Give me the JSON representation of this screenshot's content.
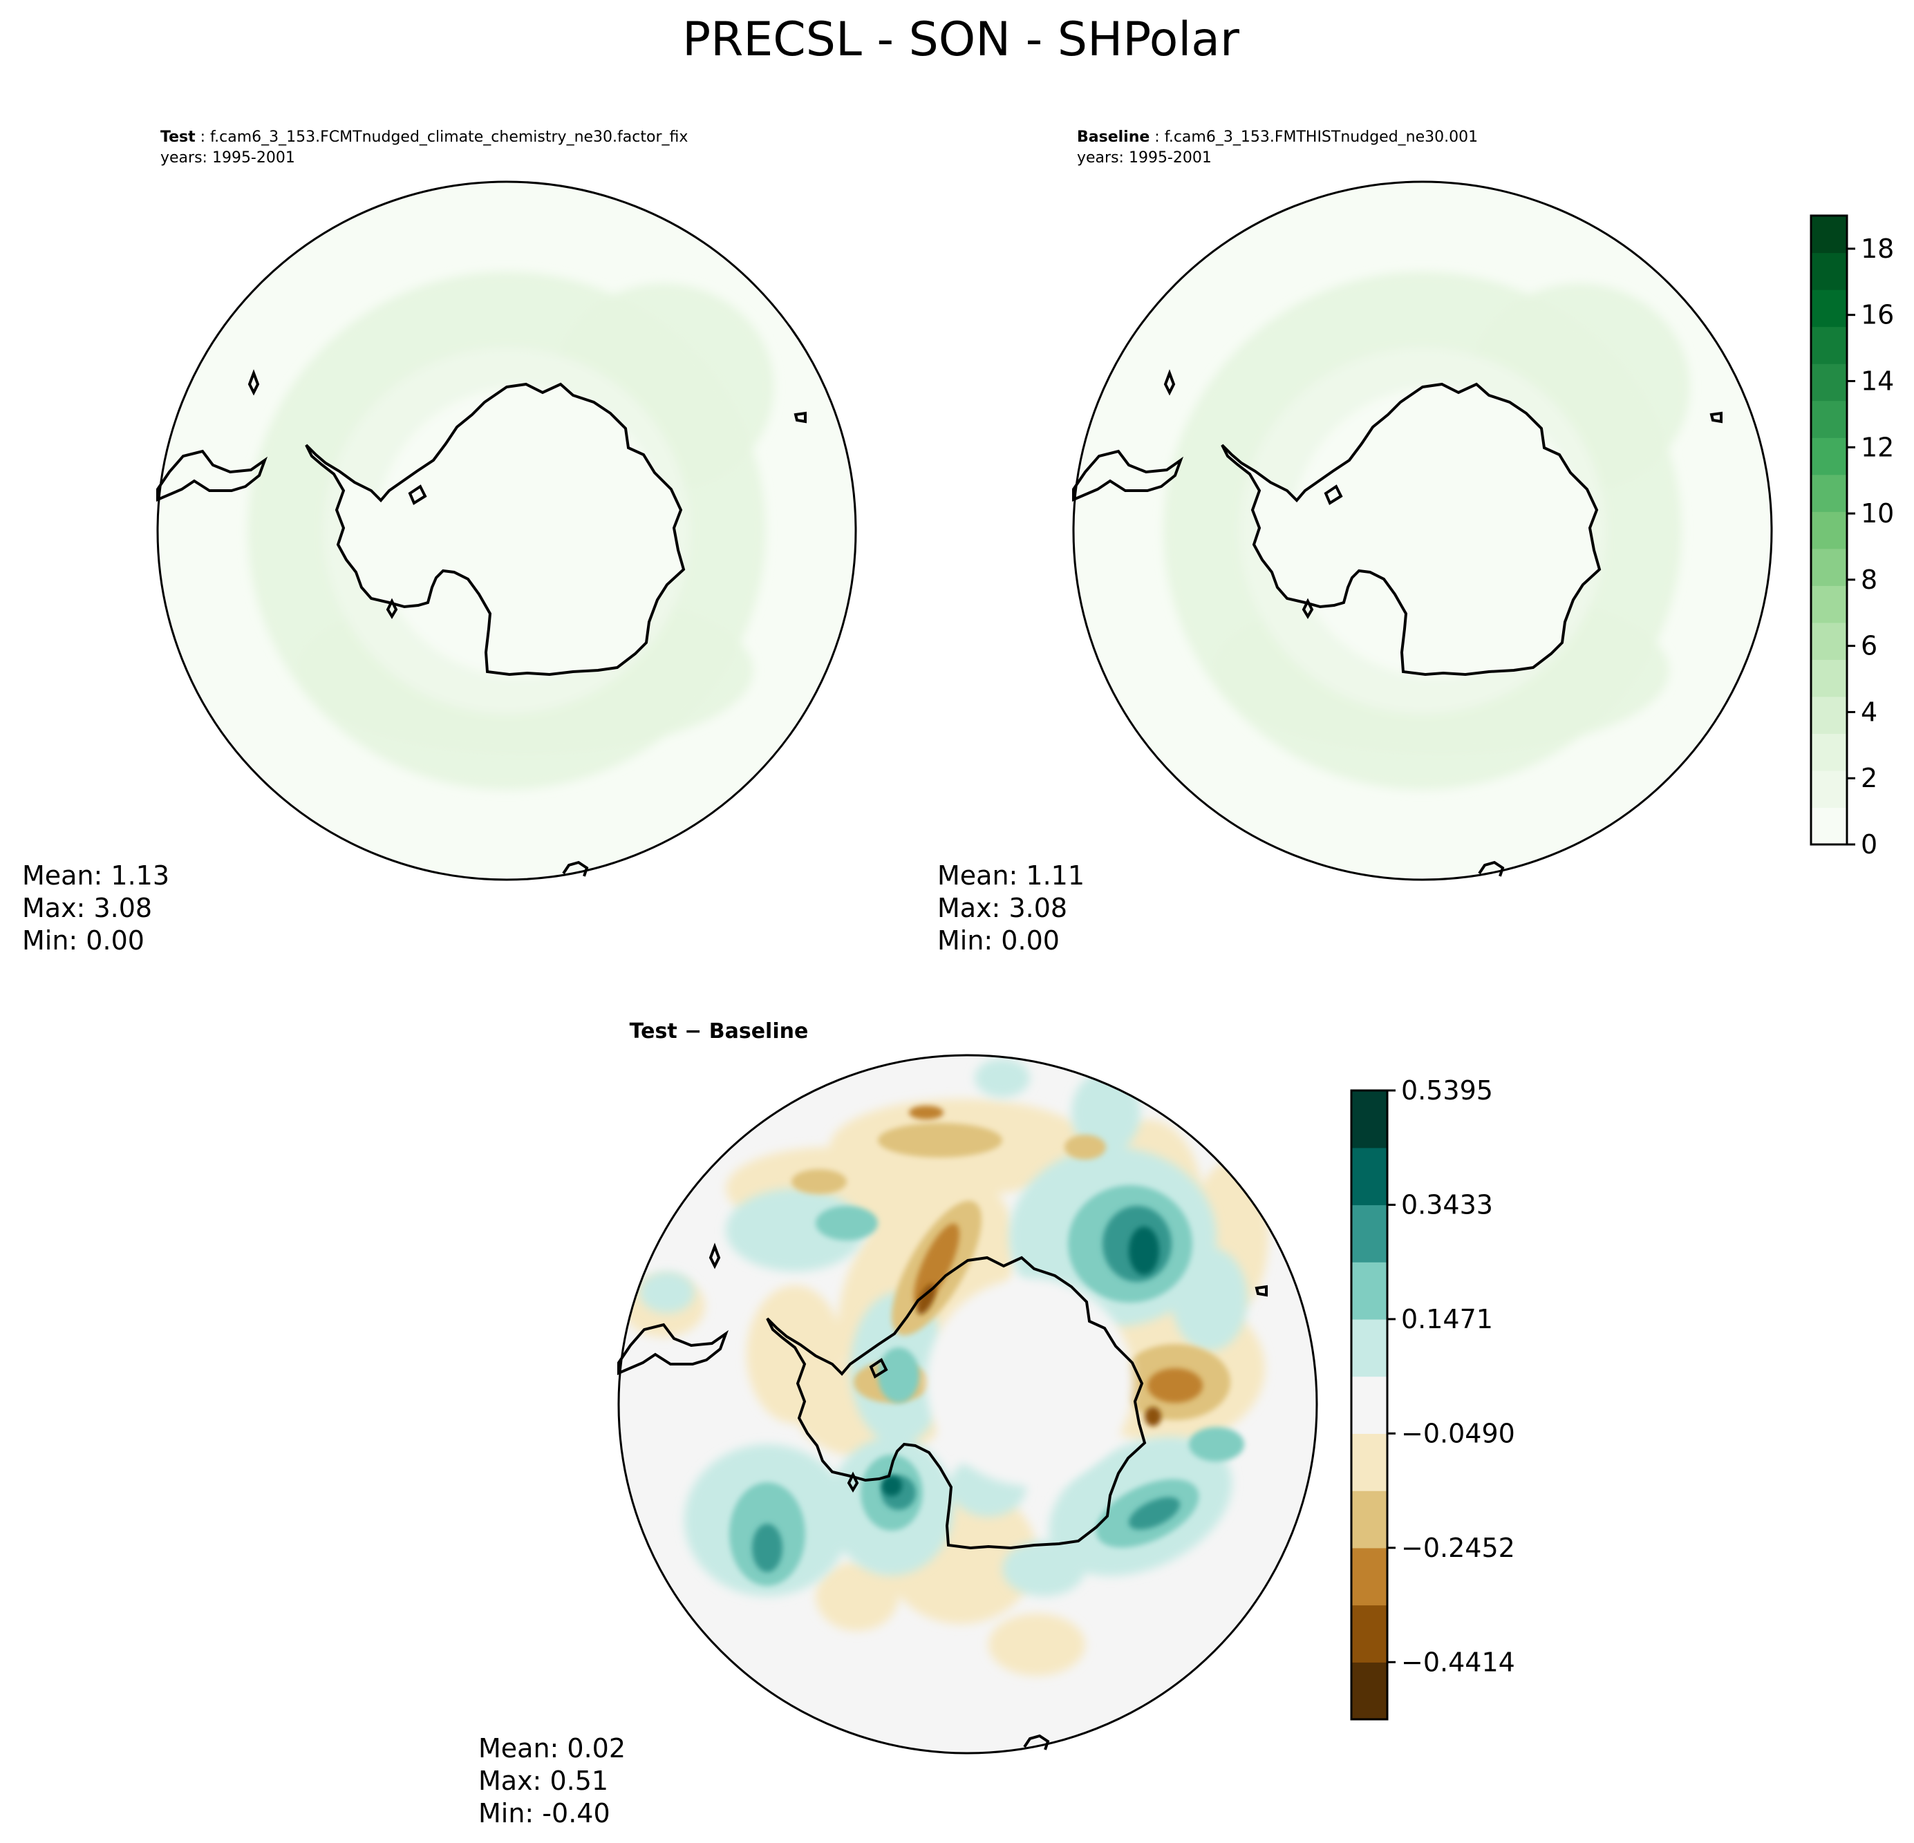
{
  "figure": {
    "title": "PRECSL - SON - SHPolar"
  },
  "panels": [
    {
      "id": "test",
      "label_bold": "Test",
      "case_name": "f.cam6_3_153.FCMTnudged_climate_chemistry_ne30.factor_fix",
      "years": "years: 1995-2001",
      "stats": {
        "mean": "Mean:  1.13",
        "max": "Max:  3.08",
        "min": "Min:  0.00"
      }
    },
    {
      "id": "baseline",
      "label_bold": "Baseline",
      "case_name": "f.cam6_3_153.FMTHISTnudged_ne30.001",
      "years": "years: 1995-2001",
      "stats": {
        "mean": "Mean:  1.11",
        "max": "Max:  3.08",
        "min": "Min:  0.00"
      }
    },
    {
      "id": "diff",
      "label_bold": "Test − Baseline",
      "stats": {
        "mean": "Mean:  0.02",
        "max": "Max:  0.51",
        "min": "Min: -0.40"
      }
    }
  ],
  "colorbars": {
    "main": {
      "tick_labels": [
        "0",
        "2",
        "4",
        "6",
        "8",
        "10",
        "12",
        "14",
        "16",
        "18"
      ],
      "tick_values": [
        0,
        2,
        4,
        6,
        8,
        10,
        12,
        14,
        16,
        18
      ],
      "range": [
        0,
        19
      ],
      "colors": [
        "#f7fcf5",
        "#eef8ea",
        "#e5f5e0",
        "#d7efd1",
        "#c7e9c0",
        "#b5e1ae",
        "#a1d99b",
        "#8ace88",
        "#74c476",
        "#5bb86a",
        "#41ab5d",
        "#329b51",
        "#238b45",
        "#137d39",
        "#006d2c",
        "#005a24",
        "#00441b"
      ]
    },
    "diff": {
      "tick_labels": [
        "0.5395",
        "0.3433",
        "0.1471",
        "−0.0490",
        "−0.2452",
        "−0.4414"
      ],
      "colors": [
        "#543005",
        "#8c510a",
        "#bf812d",
        "#dfc27d",
        "#f6e8c3",
        "#f5f5f5",
        "#c7eae5",
        "#80cdc1",
        "#35978f",
        "#01665e",
        "#003c30"
      ]
    }
  }
}
